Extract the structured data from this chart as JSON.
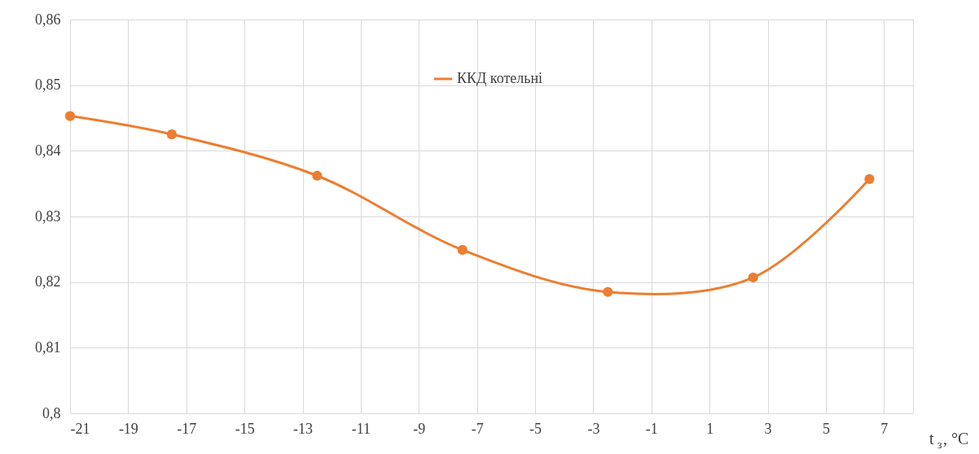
{
  "chart_data": {
    "type": "line",
    "xlabel": "t$_{з}$, °C",
    "x": [
      -21,
      -17.5,
      -12.5,
      -7.5,
      -2.5,
      2.5,
      6.5
    ],
    "series": [
      {
        "name": "ККД котельні",
        "color": "#ed7d31",
        "values": [
          0.8453,
          0.8425,
          0.8362,
          0.8249,
          0.8185,
          0.8207,
          0.8357
        ]
      }
    ],
    "xlim": [
      -21,
      8
    ],
    "xticks": [
      -21,
      -19,
      -17,
      -15,
      -13,
      -11,
      -9,
      -7,
      -5,
      -3,
      -1,
      1,
      3,
      5,
      7
    ],
    "ylim": [
      0.8,
      0.86
    ],
    "yticks": [
      {
        "value": 0.8,
        "label": "0,8"
      },
      {
        "value": 0.81,
        "label": "0,81"
      },
      {
        "value": 0.82,
        "label": "0,82"
      },
      {
        "value": 0.83,
        "label": "0,83"
      },
      {
        "value": 0.84,
        "label": "0,84"
      },
      {
        "value": 0.85,
        "label": "0,85"
      },
      {
        "value": 0.86,
        "label": "0,86"
      }
    ],
    "grid": true,
    "legend": "top",
    "marker": "circle",
    "line_style": "solid"
  }
}
